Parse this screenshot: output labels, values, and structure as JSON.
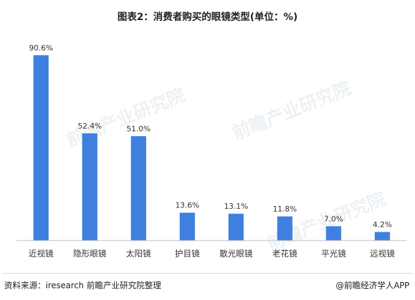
{
  "title": "图表2：消费者购买的眼镜类型(单位：%)",
  "source": "资料来源：iresearch 前瞻产业研究院整理",
  "brand": "@前瞻经济学人APP",
  "watermark": "前瞻产业研究院",
  "colors": {
    "bar": "#3f7fe0",
    "axis": "#bfbfbf",
    "text": "#333333"
  },
  "chart_data": {
    "type": "bar",
    "categories": [
      "近视镜",
      "隐形眼镜",
      "太阳镜",
      "护目镜",
      "散光眼镜",
      "老花镜",
      "平光镜",
      "远视镜"
    ],
    "values": [
      90.6,
      52.4,
      51.0,
      13.6,
      13.1,
      11.8,
      7.0,
      4.2
    ],
    "value_labels": [
      "90.6%",
      "52.4%",
      "51.0%",
      "13.6%",
      "13.1%",
      "11.8%",
      "7.0%",
      "4.2%"
    ],
    "title": "图表2：消费者购买的眼镜类型(单位：%)",
    "xlabel": "",
    "ylabel": "",
    "ylim": [
      0,
      100
    ],
    "grid": false,
    "legend": "none"
  }
}
